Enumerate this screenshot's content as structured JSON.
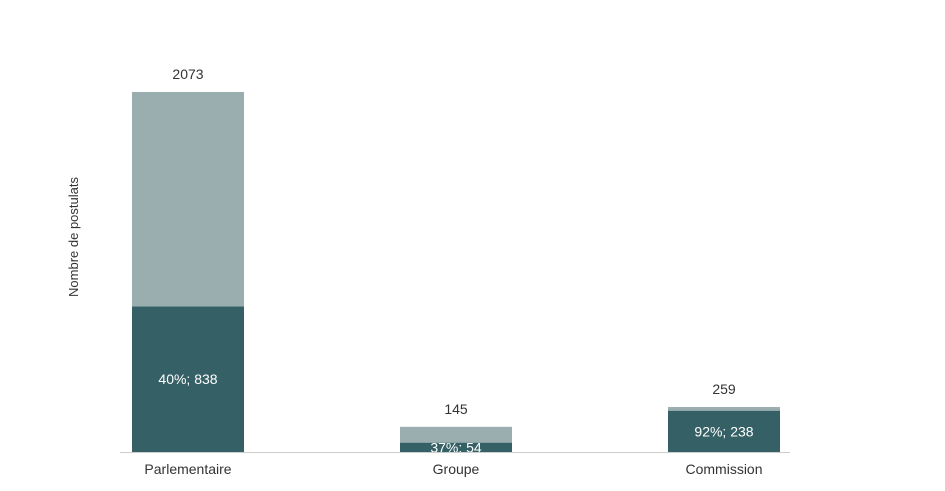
{
  "chart_data": {
    "type": "bar",
    "stacked": true,
    "title": "",
    "xlabel": "",
    "ylabel": "Nombre de postulats",
    "categories": [
      "Parlementaire",
      "Groupe",
      "Commission"
    ],
    "totals": [
      2073,
      145,
      259
    ],
    "series": [
      {
        "values": [
          838,
          54,
          238
        ],
        "labels": [
          "40%; 838",
          "37%; 54",
          "92%; 238"
        ],
        "color": "#356066"
      },
      {
        "values": [
          1235,
          91,
          21
        ],
        "color": "#9aaeb0"
      }
    ],
    "total_labels": [
      "2073",
      "145",
      "259"
    ],
    "ylim": [
      0,
      2073
    ],
    "grid": false,
    "legend": "none",
    "colors": {
      "axis": "#cccccc",
      "text": "#333333",
      "inner_text": "#ffffff"
    }
  }
}
